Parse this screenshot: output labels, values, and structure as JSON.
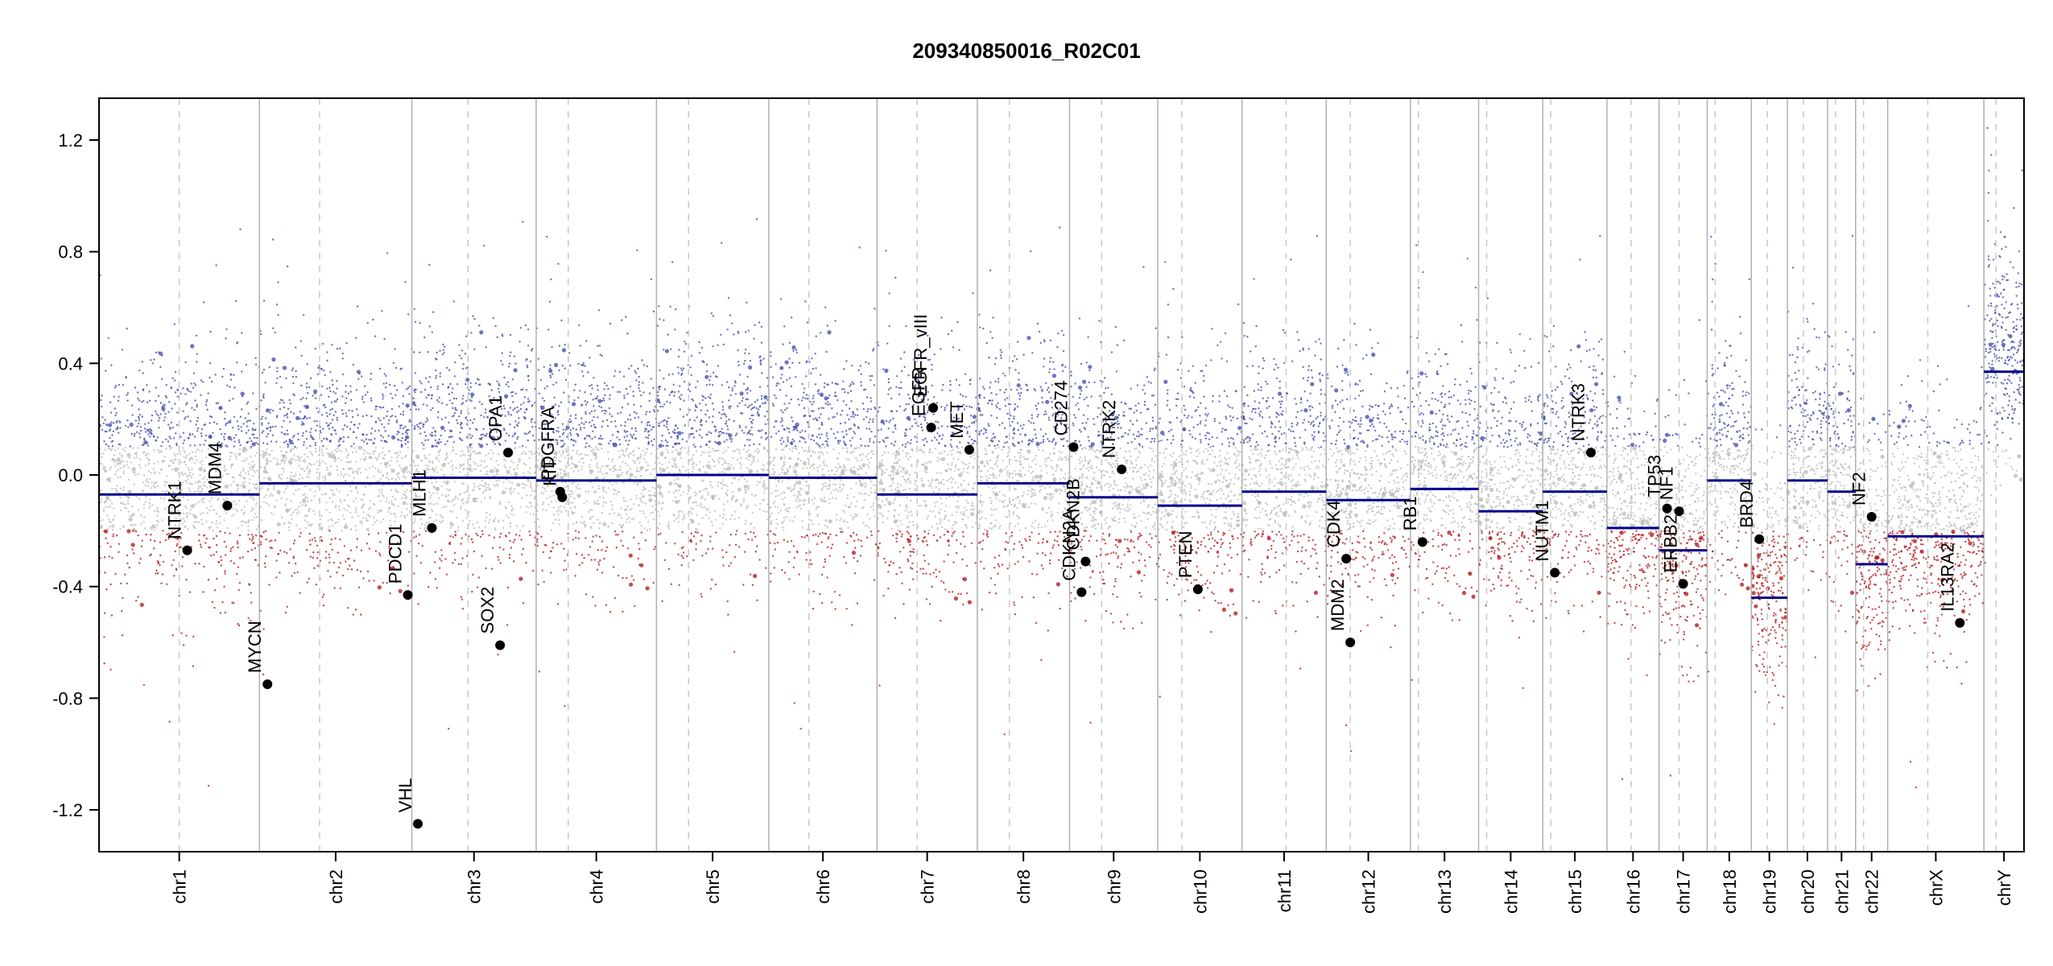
{
  "chart_data": {
    "type": "scatter",
    "title": "209340850016_R02C01",
    "xlabel": "",
    "ylabel": "",
    "ylim": [
      -1.35,
      1.35
    ],
    "yticks": [
      1.2,
      0.8,
      0.4,
      0.0,
      -0.4,
      -0.8,
      -1.2
    ],
    "ytick_labels": [
      "1.2",
      "0.8",
      "0.4",
      "0.0",
      "-0.4",
      "-0.8",
      "-1.2"
    ],
    "grid": false,
    "colors": {
      "gain": "#3b44a8",
      "neutral": "#b8b8b8",
      "loss": "#b01010",
      "segment": "#00008b",
      "boundary": "#b0b0b0",
      "centromere": "#c8c8c8",
      "gene_point": "#000000"
    },
    "chromosomes": [
      {
        "name": "chr1",
        "x_range": [
          0.0,
          4.0
        ],
        "centromere": 2.0
      },
      {
        "name": "chr2",
        "x_range": [
          4.0,
          7.8
        ],
        "centromere": 5.5
      },
      {
        "name": "chr3",
        "x_range": [
          7.8,
          10.9
        ],
        "centromere": 9.2
      },
      {
        "name": "chr4",
        "x_range": [
          10.9,
          13.9
        ],
        "centromere": 11.7
      },
      {
        "name": "chr5",
        "x_range": [
          13.9,
          16.7
        ],
        "centromere": 14.7
      },
      {
        "name": "chr6",
        "x_range": [
          16.7,
          19.4
        ],
        "centromere": 17.7
      },
      {
        "name": "chr7",
        "x_range": [
          19.4,
          21.9
        ],
        "centromere": 20.4
      },
      {
        "name": "chr8",
        "x_range": [
          21.9,
          24.2
        ],
        "centromere": 22.7
      },
      {
        "name": "chr9",
        "x_range": [
          24.2,
          26.4
        ],
        "centromere": 25.0
      },
      {
        "name": "chr10",
        "x_range": [
          26.4,
          28.5
        ],
        "centromere": 27.0
      },
      {
        "name": "chr11",
        "x_range": [
          28.5,
          30.6
        ],
        "centromere": 29.6
      },
      {
        "name": "chr12",
        "x_range": [
          30.6,
          32.7
        ],
        "centromere": 31.2
      },
      {
        "name": "chr13",
        "x_range": [
          32.7,
          34.4
        ],
        "centromere": 32.9
      },
      {
        "name": "chr14",
        "x_range": [
          34.4,
          36.0
        ],
        "centromere": 34.6
      },
      {
        "name": "chr15",
        "x_range": [
          36.0,
          37.6
        ],
        "centromere": 36.2
      },
      {
        "name": "chr16",
        "x_range": [
          37.6,
          38.9
        ],
        "centromere": 38.2
      },
      {
        "name": "chr17",
        "x_range": [
          38.9,
          40.1
        ],
        "centromere": 39.4
      },
      {
        "name": "chr18",
        "x_range": [
          40.1,
          41.2
        ],
        "centromere": 40.3
      },
      {
        "name": "chr19",
        "x_range": [
          41.2,
          42.1
        ],
        "centromere": 41.6
      },
      {
        "name": "chr20",
        "x_range": [
          42.1,
          43.1
        ],
        "centromere": 42.5
      },
      {
        "name": "chr21",
        "x_range": [
          43.1,
          43.8
        ],
        "centromere": 43.3
      },
      {
        "name": "chr22",
        "x_range": [
          43.8,
          44.6
        ],
        "centromere": 44.0
      },
      {
        "name": "chrX",
        "x_range": [
          44.6,
          47.0
        ],
        "centromere": 45.6
      },
      {
        "name": "chrY",
        "x_range": [
          47.0,
          48.0
        ],
        "centromere": 47.3
      }
    ],
    "segments": [
      {
        "chr": "chr1",
        "x_start": 0.0,
        "x_end": 4.0,
        "value": -0.07
      },
      {
        "chr": "chr2",
        "x_start": 4.0,
        "x_end": 7.8,
        "value": -0.03
      },
      {
        "chr": "chr3",
        "x_start": 7.8,
        "x_end": 10.9,
        "value": -0.01
      },
      {
        "chr": "chr4",
        "x_start": 10.9,
        "x_end": 13.9,
        "value": -0.02
      },
      {
        "chr": "chr5",
        "x_start": 13.9,
        "x_end": 16.7,
        "value": 0.0
      },
      {
        "chr": "chr6",
        "x_start": 16.7,
        "x_end": 19.4,
        "value": -0.01
      },
      {
        "chr": "chr7",
        "x_start": 19.4,
        "x_end": 21.9,
        "value": -0.07
      },
      {
        "chr": "chr8",
        "x_start": 21.9,
        "x_end": 24.2,
        "value": -0.03
      },
      {
        "chr": "chr9",
        "x_start": 24.2,
        "x_end": 26.4,
        "value": -0.08
      },
      {
        "chr": "chr10",
        "x_start": 26.4,
        "x_end": 28.5,
        "value": -0.11
      },
      {
        "chr": "chr11",
        "x_start": 28.5,
        "x_end": 30.6,
        "value": -0.06
      },
      {
        "chr": "chr12",
        "x_start": 30.6,
        "x_end": 32.7,
        "value": -0.09
      },
      {
        "chr": "chr13",
        "x_start": 32.7,
        "x_end": 34.4,
        "value": -0.05
      },
      {
        "chr": "chr14",
        "x_start": 34.4,
        "x_end": 36.0,
        "value": -0.13
      },
      {
        "chr": "chr15",
        "x_start": 36.0,
        "x_end": 37.6,
        "value": -0.06
      },
      {
        "chr": "chr16",
        "x_start": 37.6,
        "x_end": 38.9,
        "value": -0.19
      },
      {
        "chr": "chr17",
        "x_start": 38.9,
        "x_end": 40.1,
        "value": -0.27
      },
      {
        "chr": "chr18",
        "x_start": 40.1,
        "x_end": 41.2,
        "value": -0.02
      },
      {
        "chr": "chr19",
        "x_start": 41.2,
        "x_end": 42.1,
        "value": -0.44
      },
      {
        "chr": "chr20",
        "x_start": 42.1,
        "x_end": 43.1,
        "value": -0.02
      },
      {
        "chr": "chr21",
        "x_start": 43.1,
        "x_end": 43.8,
        "value": -0.06
      },
      {
        "chr": "chr22",
        "x_start": 43.8,
        "x_end": 44.6,
        "value": -0.32
      },
      {
        "chr": "chrX",
        "x_start": 44.6,
        "x_end": 47.0,
        "value": -0.22
      },
      {
        "chr": "chrY",
        "x_start": 47.0,
        "x_end": 48.0,
        "value": 0.37
      }
    ],
    "genes": [
      {
        "name": "NTRK1",
        "x": 2.2,
        "y": -0.27
      },
      {
        "name": "MDM4",
        "x": 3.2,
        "y": -0.11
      },
      {
        "name": "MYCN",
        "x": 4.2,
        "y": -0.75
      },
      {
        "name": "PDCD1",
        "x": 7.7,
        "y": -0.43
      },
      {
        "name": "VHL",
        "x": 7.95,
        "y": -1.25
      },
      {
        "name": "MLH1",
        "x": 8.3,
        "y": -0.19
      },
      {
        "name": "SOX2",
        "x": 10.0,
        "y": -0.61
      },
      {
        "name": "OPA1",
        "x": 10.2,
        "y": 0.08
      },
      {
        "name": "PDGFRA",
        "x": 11.5,
        "y": -0.06
      },
      {
        "name": "KIT",
        "x": 11.55,
        "y": -0.08
      },
      {
        "name": "EGFR_vIII",
        "x": 20.8,
        "y": 0.24
      },
      {
        "name": "EGFR",
        "x": 20.75,
        "y": 0.17
      },
      {
        "name": "MET",
        "x": 21.7,
        "y": 0.09
      },
      {
        "name": "CD274",
        "x": 24.3,
        "y": 0.1
      },
      {
        "name": "CDKN2A",
        "x": 24.5,
        "y": -0.42
      },
      {
        "name": "CDKN2B",
        "x": 24.6,
        "y": -0.31
      },
      {
        "name": "NTRK2",
        "x": 25.5,
        "y": 0.02
      },
      {
        "name": "PTEN",
        "x": 27.4,
        "y": -0.41
      },
      {
        "name": "CDK4",
        "x": 31.1,
        "y": -0.3
      },
      {
        "name": "MDM2",
        "x": 31.2,
        "y": -0.6
      },
      {
        "name": "RB1",
        "x": 33.0,
        "y": -0.24
      },
      {
        "name": "NUTM1",
        "x": 36.3,
        "y": -0.35
      },
      {
        "name": "NTRK3",
        "x": 37.2,
        "y": 0.08
      },
      {
        "name": "TP53",
        "x": 39.1,
        "y": -0.12
      },
      {
        "name": "NF1",
        "x": 39.4,
        "y": -0.13
      },
      {
        "name": "ERBB2",
        "x": 39.5,
        "y": -0.39
      },
      {
        "name": "BRD4",
        "x": 41.4,
        "y": -0.23
      },
      {
        "name": "NF2",
        "x": 44.2,
        "y": -0.15
      },
      {
        "name": "IL13RA2",
        "x": 46.4,
        "y": -0.53
      }
    ],
    "scatter_density": {
      "description": "background probes per chromosome",
      "note": "dense cloud of probe log-ratios, gains blue above ~0.1, losses red below ~-0.2"
    }
  }
}
